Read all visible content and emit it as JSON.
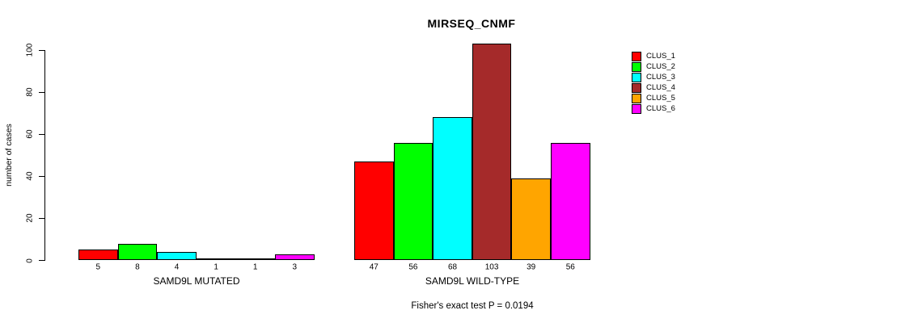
{
  "title": "MIRSEQ_CNMF",
  "chart_data": {
    "type": "bar",
    "title": "MIRSEQ_CNMF",
    "ylabel": "number of cases",
    "xlabel": "",
    "ylim": [
      0,
      100
    ],
    "yticks": [
      0,
      20,
      40,
      60,
      80,
      100
    ],
    "grid": false,
    "legend_position": "right",
    "categories": [
      "SAMD9L MUTATED",
      "SAMD9L WILD-TYPE"
    ],
    "series": [
      {
        "name": "CLUS_1",
        "color": "#FF0000",
        "values": [
          5,
          47
        ]
      },
      {
        "name": "CLUS_2",
        "color": "#00FF00",
        "values": [
          8,
          56
        ]
      },
      {
        "name": "CLUS_3",
        "color": "#00FFFF",
        "values": [
          4,
          68
        ]
      },
      {
        "name": "CLUS_4",
        "color": "#A52A2A",
        "values": [
          1,
          103
        ]
      },
      {
        "name": "CLUS_5",
        "color": "#FFA500",
        "values": [
          1,
          39
        ]
      },
      {
        "name": "CLUS_6",
        "color": "#FF00FF",
        "values": [
          3,
          56
        ]
      }
    ],
    "bar_value_labels": true,
    "annotation": "Fisher's exact test P = 0.0194"
  }
}
